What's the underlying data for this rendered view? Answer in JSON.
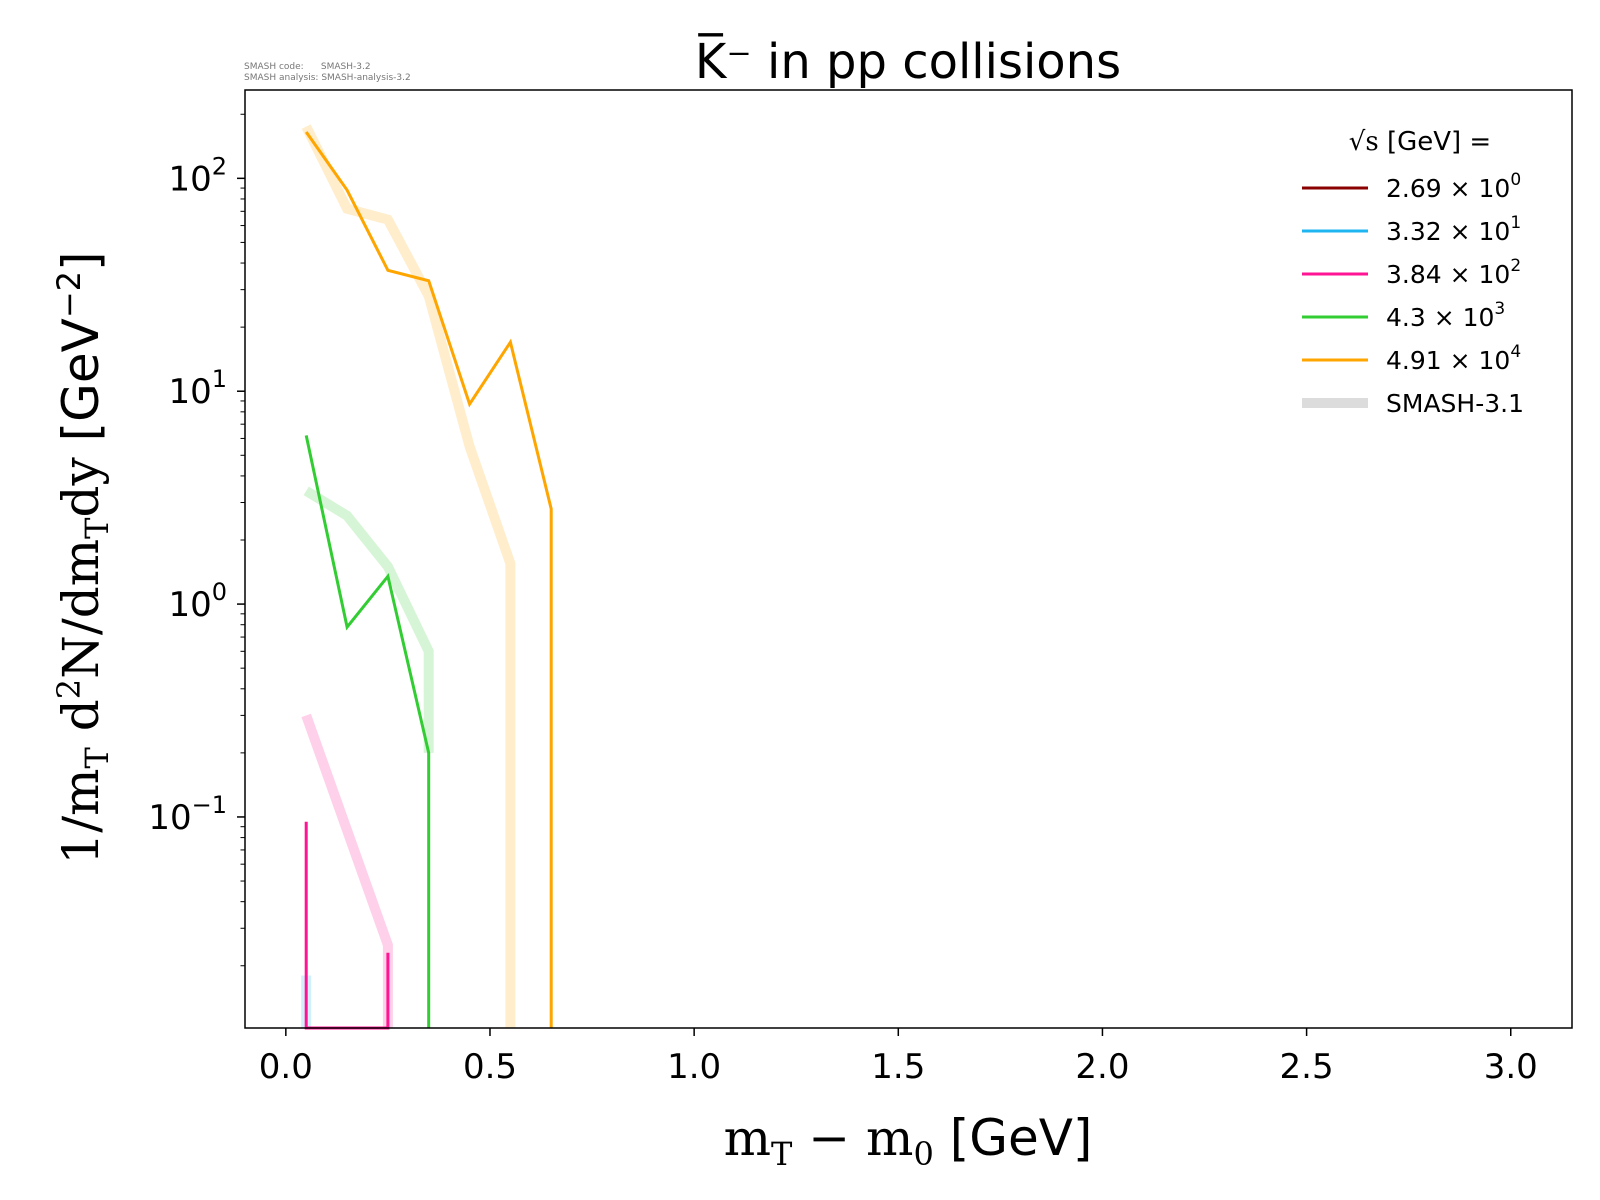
{
  "meta": {
    "code_label": "SMASH code:",
    "code_version": "SMASH-3.2",
    "analysis_label": "SMASH analysis:",
    "analysis_version": "SMASH-analysis-3.2"
  },
  "chart_data": {
    "type": "line",
    "title": "K̅⁻ in pp collisions",
    "xlabel": "m_T - m_0 [GeV]",
    "ylabel": "1/m_T d^2N/dm_T dy [GeV^-2]",
    "xlim": [
      -0.1,
      3.15
    ],
    "ylim": [
      0.0102,
      260
    ],
    "yscale": "log",
    "xticks": [
      "0.0",
      "0.5",
      "1.0",
      "1.5",
      "2.0",
      "2.5",
      "3.0"
    ],
    "yticks": [
      "10",
      "10",
      "10",
      "10"
    ],
    "ytick_exponents": [
      "-1",
      "0",
      "1",
      "2"
    ],
    "grid": false,
    "legend": {
      "position": "top-right",
      "title": "√s [GeV] =",
      "entries": [
        {
          "mantissa": "2.69 × 10",
          "exp": "0",
          "color": "#8b0000"
        },
        {
          "mantissa": "3.32 × 10",
          "exp": "1",
          "color": "#1fb5f0"
        },
        {
          "mantissa": "3.84 × 10",
          "exp": "2",
          "color": "#ff1493"
        },
        {
          "mantissa": "4.3 × 10",
          "exp": "3",
          "color": "#32cd32"
        },
        {
          "mantissa": "4.91 × 10",
          "exp": "4",
          "color": "#ffa500"
        },
        {
          "mantissa": "SMASH-3.1",
          "exp": "",
          "color": "#dcdcdc"
        }
      ]
    },
    "series": [
      {
        "color": "#ff1493",
        "x": [
          0.05,
          0.05,
          0.05,
          0.05,
          0.25,
          0.25,
          0.25
        ],
        "y": [
          0.0102,
          0.095,
          0.0102,
          0.0102,
          0.0102,
          0.023,
          0.0102
        ]
      },
      {
        "color": "#32cd32",
        "x": [
          0.05,
          0.15,
          0.25,
          0.35,
          0.35
        ],
        "y": [
          6.2,
          0.78,
          1.35,
          0.2,
          0.0102
        ]
      },
      {
        "color": "#ffa500",
        "x": [
          0.05,
          0.15,
          0.25,
          0.35,
          0.45,
          0.55,
          0.65,
          0.65
        ],
        "y": [
          165,
          88,
          37,
          33,
          8.7,
          17,
          2.8,
          0.0102
        ]
      }
    ],
    "reference_series": [
      {
        "color": "#1fb5f0",
        "x": [
          0.05,
          0.05
        ],
        "y": [
          0.0102,
          0.018
        ]
      },
      {
        "color": "#ff1493",
        "x": [
          0.05,
          0.25,
          0.25
        ],
        "y": [
          0.3,
          0.025,
          0.0102
        ]
      },
      {
        "color": "#32cd32",
        "x": [
          0.05,
          0.15,
          0.25,
          0.35,
          0.35
        ],
        "y": [
          3.4,
          2.6,
          1.5,
          0.6,
          0.2
        ]
      },
      {
        "color": "#ffa500",
        "x": [
          0.05,
          0.15,
          0.25,
          0.35,
          0.45,
          0.55,
          0.55
        ],
        "y": [
          175,
          72,
          64,
          28,
          5.5,
          1.55,
          0.0102
        ]
      }
    ]
  }
}
